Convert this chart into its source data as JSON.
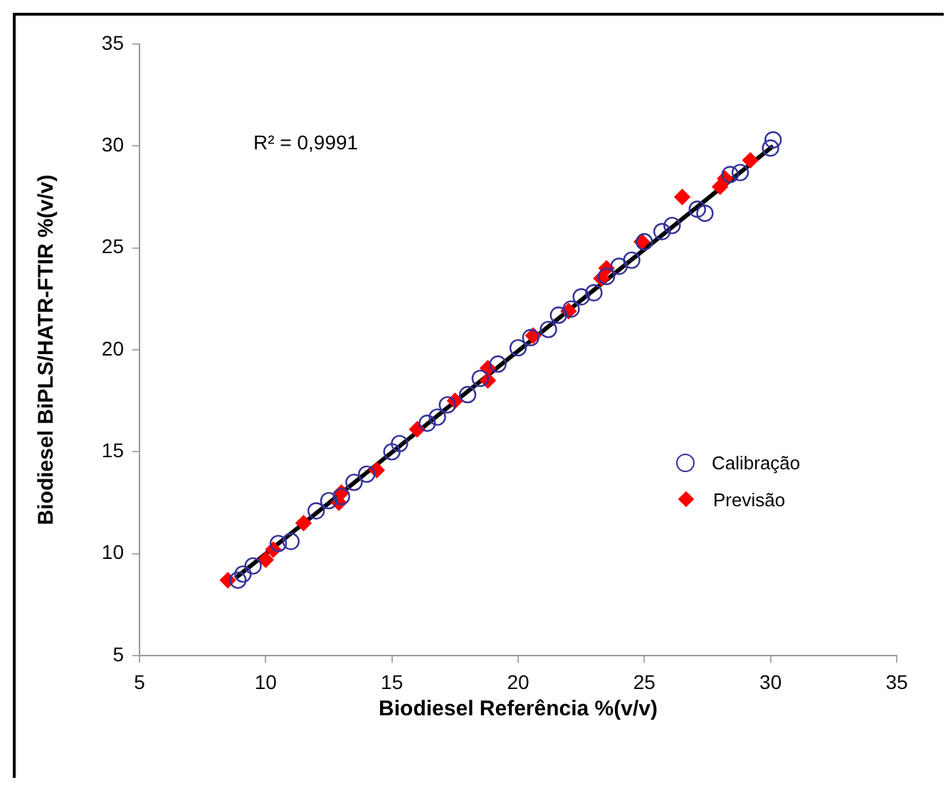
{
  "chart_data": {
    "type": "scatter",
    "xlabel": "Biodiesel Referência %(v/v)",
    "ylabel": "Biodiesel BiPLS/HATR-FTIR %(v/v)",
    "xlim": [
      5,
      35
    ],
    "xticks": [
      5,
      10,
      15,
      20,
      25,
      30,
      35
    ],
    "ylim": [
      5,
      35
    ],
    "yticks": [
      5,
      10,
      15,
      20,
      25,
      30,
      35
    ],
    "grid": false,
    "legend": "right",
    "annotations": [
      "R² = 0,9991"
    ],
    "series": [
      {
        "name": "Calibração",
        "color": "#333399",
        "marker": "circle",
        "x": [
          8.9,
          9.1,
          9.5,
          10.5,
          11.0,
          12.0,
          12.5,
          13.0,
          13.5,
          14.0,
          15.0,
          15.3,
          16.4,
          16.8,
          17.2,
          18.0,
          18.5,
          19.2,
          20.0,
          20.5,
          21.2,
          21.6,
          22.1,
          22.5,
          23.0,
          23.5,
          24.0,
          24.5,
          25.0,
          25.7,
          26.1,
          27.1,
          27.4,
          28.4,
          28.8,
          30.0,
          30.1
        ],
        "values": [
          8.7,
          9.0,
          9.4,
          10.5,
          10.6,
          12.1,
          12.6,
          12.8,
          13.5,
          13.9,
          15.0,
          15.4,
          16.4,
          16.7,
          17.3,
          17.8,
          18.6,
          19.3,
          20.1,
          20.6,
          21.0,
          21.7,
          22.0,
          22.6,
          22.8,
          23.6,
          24.1,
          24.4,
          25.3,
          25.8,
          26.1,
          26.9,
          26.7,
          28.6,
          28.7,
          29.9,
          30.3
        ]
      },
      {
        "name": "Previsão",
        "color": "#ff0000",
        "marker": "diamond",
        "x": [
          8.5,
          10.0,
          10.3,
          11.5,
          12.9,
          13.0,
          14.4,
          16.0,
          17.5,
          18.8,
          18.8,
          20.6,
          22.0,
          23.3,
          23.5,
          24.9,
          26.5,
          28.0,
          28.2,
          29.2
        ],
        "values": [
          8.7,
          9.7,
          10.2,
          11.5,
          12.5,
          13.0,
          14.1,
          16.1,
          17.5,
          18.5,
          19.1,
          20.7,
          21.9,
          23.5,
          24.0,
          25.3,
          27.5,
          28.0,
          28.4,
          29.3
        ]
      },
      {
        "type": "line",
        "color": "#000000",
        "marker": "none",
        "x": [
          8.8,
          30.1
        ],
        "values": [
          8.8,
          30.0
        ]
      }
    ]
  }
}
